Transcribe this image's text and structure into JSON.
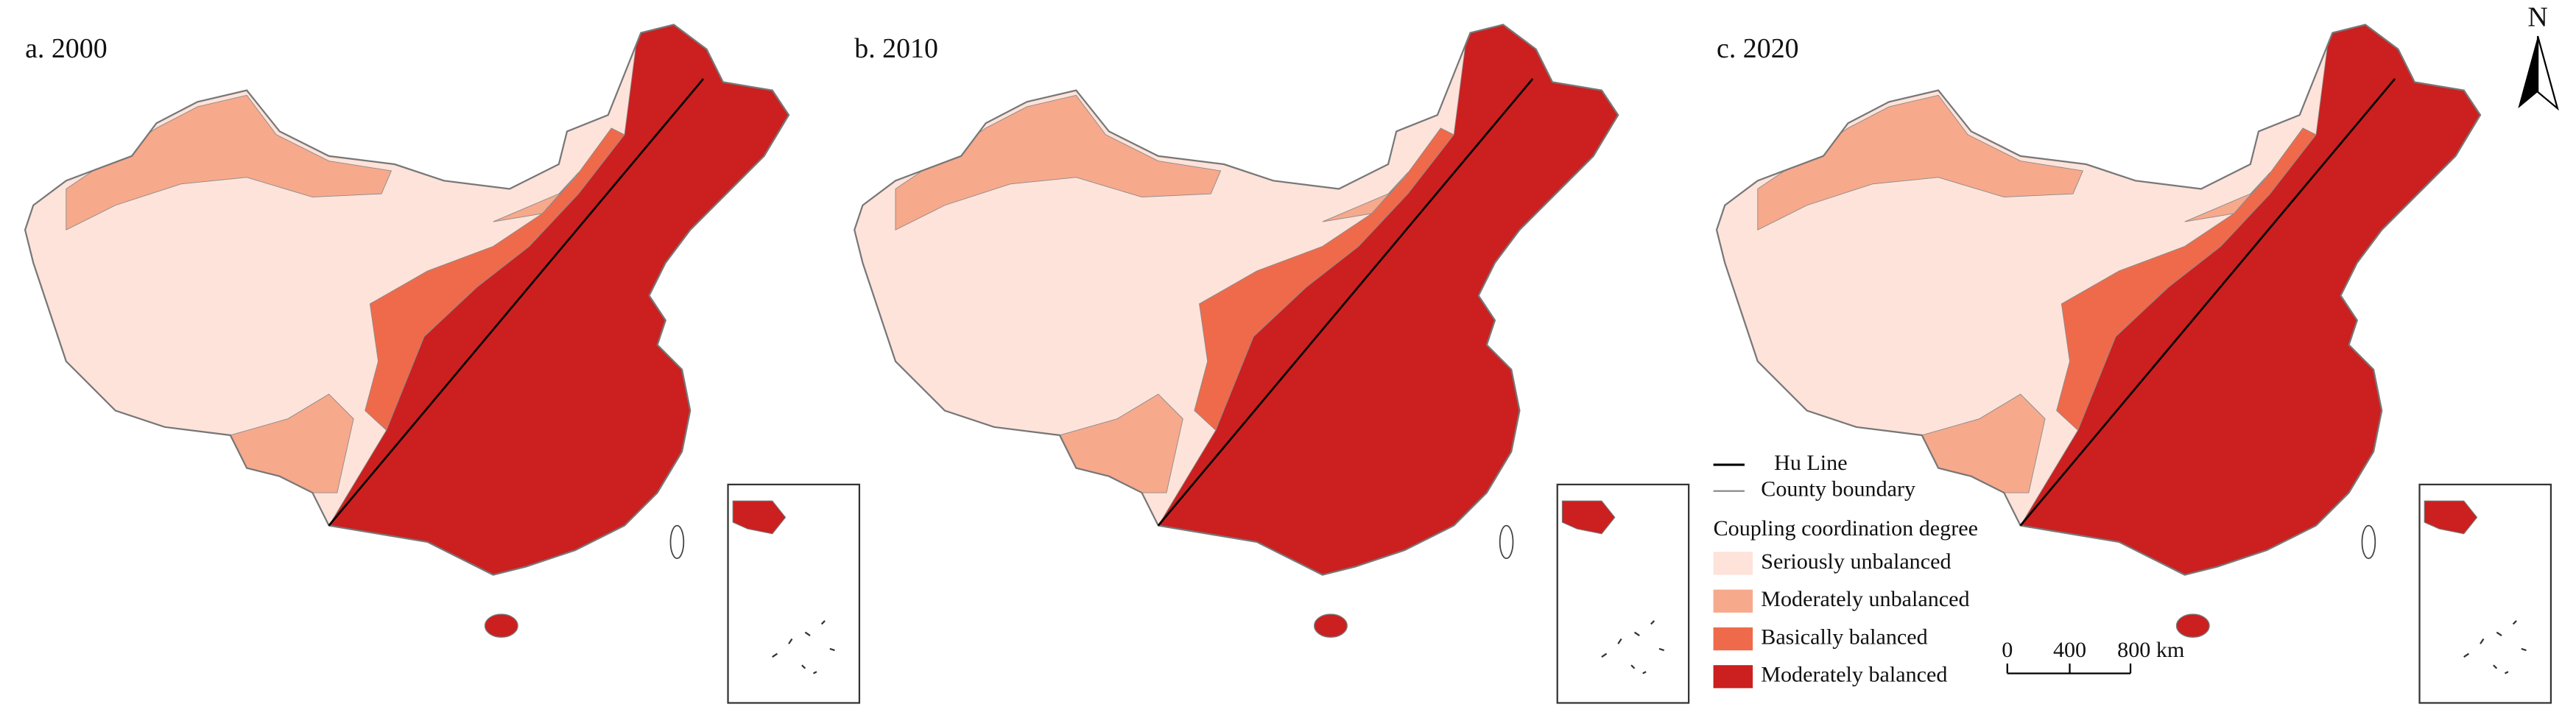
{
  "panels": [
    {
      "title": "a. 2000"
    },
    {
      "title": "b. 2010"
    },
    {
      "title": "c. 2020"
    }
  ],
  "legend": {
    "lines": [
      {
        "label": "Hu Line",
        "color": "#000000"
      },
      {
        "label": "County boundary",
        "color": "#8a8a8a"
      }
    ],
    "title": "Coupling coordination degree",
    "classes": [
      {
        "label": "Seriously unbalanced",
        "color": "#fde3da"
      },
      {
        "label": "Moderately unbalanced",
        "color": "#f7a98c"
      },
      {
        "label": "Basically balanced",
        "color": "#ef6a4b"
      },
      {
        "label": "Moderately balanced",
        "color": "#cc1f1f"
      }
    ]
  },
  "scale_bar": {
    "ticks": [
      "0",
      "400",
      "800 km"
    ]
  },
  "north": "N"
}
